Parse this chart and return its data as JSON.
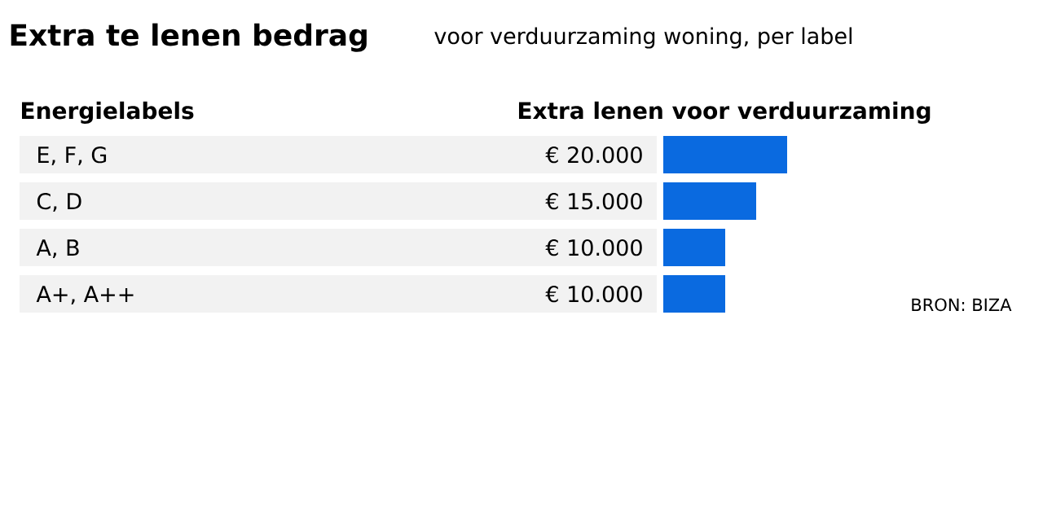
{
  "chart_data": {
    "type": "bar",
    "orientation": "horizontal",
    "title": "Extra te lenen bedrag",
    "subtitle": "voor verduurzaming woning, per label",
    "ylabel": "Energielabels",
    "xlabel": "Extra lenen voor verduurzaming",
    "categories": [
      "E, F, G",
      "C, D",
      "A, B",
      "A+, A++"
    ],
    "values": [
      20000,
      15000,
      10000,
      10000
    ],
    "value_labels": [
      "€ 20.000",
      "€ 15.000",
      "€ 10.000",
      "€ 10.000"
    ],
    "color": "#0a6ae0",
    "annotations": [
      "BRON: BIZA"
    ]
  }
}
